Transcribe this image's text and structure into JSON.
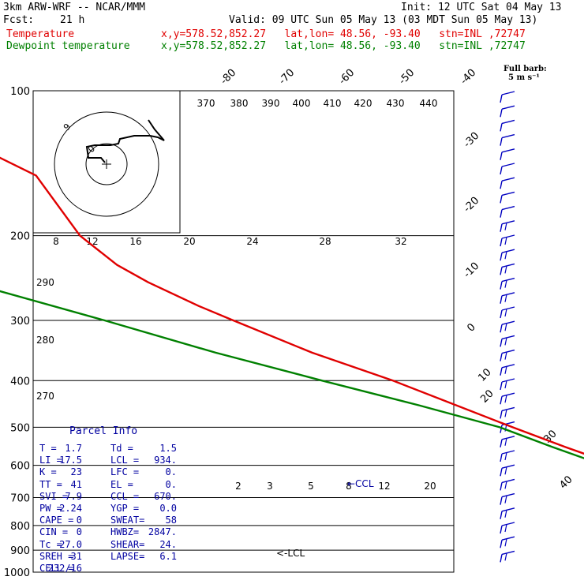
{
  "header": {
    "model": "3km ARW-WRF -- NCAR/MMM",
    "init": "Init: 12 UTC Sat 04 May 13",
    "fcst_label": "Fcst:",
    "fcst_value": "21 h",
    "valid": "Valid: 09 UTC Sun 05 May 13 (03 MDT Sun 05 May 13)",
    "temp_label": "Temperature",
    "temp_info": "x,y=578.52,852.27   lat,lon= 48.56, -93.40   stn=INL ,72747",
    "dew_label": "Dewpoint temperature",
    "dew_info": "x,y=578.52,852.27   lat,lon= 48.56, -93.40   stn=INL ,72747"
  },
  "barb_legend": {
    "line1": "Full barb:",
    "line2": "5 m s⁻¹"
  },
  "colors": {
    "temperature": "#e00000",
    "dewpoint": "#008000",
    "barbs": "#0000c0",
    "text": "#000000"
  },
  "chart_data": {
    "type": "line",
    "title": "",
    "yscale": "log",
    "pressure_levels": [
      100,
      200,
      300,
      400,
      500,
      600,
      700,
      800,
      900,
      1000
    ],
    "pressure_tick_labels": [
      "100",
      "200",
      "300",
      "400",
      "500",
      "600",
      "700",
      "800",
      "900",
      "1000"
    ],
    "isotherm_labels": [
      "-80",
      "-70",
      "-60",
      "-50",
      "-40",
      "-30",
      "-20",
      "-10",
      "0",
      "10",
      "20",
      "30",
      "40"
    ],
    "theta_labels": [
      "370",
      "380",
      "390",
      "400",
      "410",
      "420",
      "430",
      "440"
    ],
    "mixing_ratio_labels_upper": [
      "20",
      "24",
      "28",
      "32"
    ],
    "mixing_ratio_labels_lower": [
      "2",
      "3",
      "5",
      "8",
      "12",
      "20"
    ],
    "hodograph": {
      "units": "kts",
      "ring_labels": [
        "8",
        "12",
        "16",
        "20",
        "24",
        "28",
        "32"
      ],
      "inner_labels": [
        "9",
        "0"
      ]
    },
    "hodograph_height_labels": [
      "290",
      "280",
      "270"
    ],
    "series": [
      {
        "name": "Temperature",
        "color": "#e00000",
        "p": [
          100,
          150,
          200,
          230,
          250,
          280,
          300,
          350,
          400,
          500,
          550,
          600,
          650,
          700,
          760,
          800,
          850,
          900,
          940,
          965,
          980
        ],
        "t": [
          -60,
          -47,
          -50,
          -49,
          -47,
          -43,
          -40,
          -33,
          -25,
          -14,
          -9,
          -4,
          0,
          3,
          4,
          5,
          3,
          2,
          1.8,
          1.7,
          1.7
        ]
      },
      {
        "name": "Dewpoint temperature",
        "color": "#008000",
        "p": [
          100,
          115,
          125,
          150,
          180,
          200,
          220,
          250,
          300,
          350,
          400,
          450,
          500,
          550,
          600,
          650,
          700,
          760,
          800,
          850,
          900,
          940,
          965,
          980
        ],
        "t": [
          -83,
          -95,
          -92,
          -85,
          -88,
          -88,
          -85,
          -75,
          -60,
          -48,
          -36,
          -25,
          -16,
          -11,
          -6,
          -1,
          2,
          4,
          5,
          3,
          1.5,
          1.5,
          1.5,
          1.5
        ]
      }
    ],
    "annotations": [
      "CCL",
      "LCL"
    ]
  },
  "parcel": {
    "title": "Parcel Info",
    "rows": [
      [
        "T  =",
        "1.7",
        "Td  =",
        "1.5"
      ],
      [
        "LI =",
        "17.5",
        "LCL =",
        "934."
      ],
      [
        "K  =",
        "23",
        "LFC =",
        "0."
      ],
      [
        "TT =",
        "41",
        "EL  =",
        "0."
      ],
      [
        "SVI =",
        "7.9",
        "CCL =",
        "670."
      ],
      [
        "PW =",
        "2.24",
        "YGP =",
        "0.0"
      ],
      [
        "CAPE =",
        "0",
        "SWEAT=",
        "58"
      ],
      [
        "CIN =",
        "0",
        "HWBZ=",
        "2847."
      ],
      [
        "Tc =",
        "27.0",
        "SHEAR=",
        "24."
      ],
      [
        "SREH =",
        "31",
        "LAPSE=",
        "6.1"
      ],
      [
        "CELL =",
        "232/16",
        "",
        ""
      ]
    ]
  }
}
